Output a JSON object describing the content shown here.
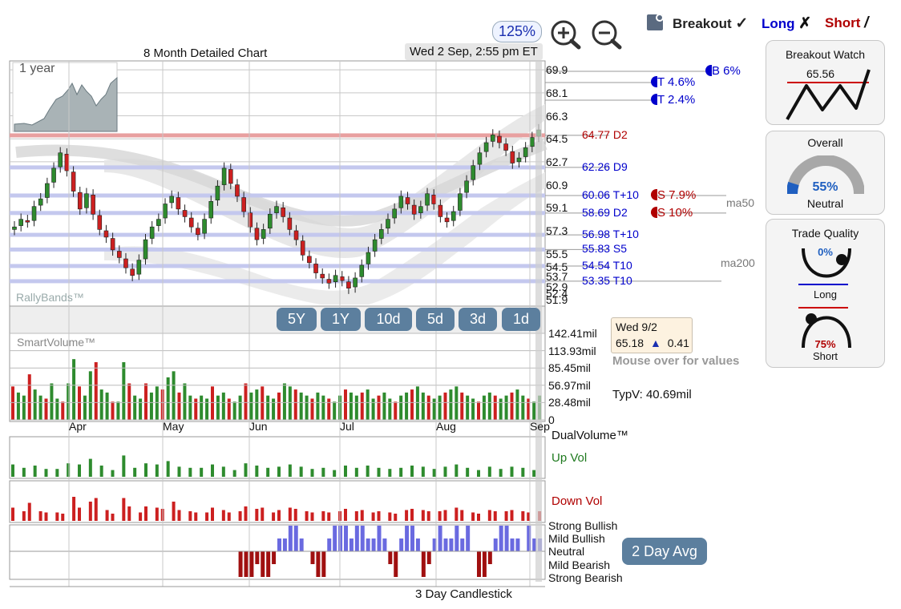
{
  "header": {
    "zoom_level": "125%",
    "zoom_in_icon": "magnifier-plus-icon",
    "zoom_out_icon": "magnifier-minus-icon",
    "legend": {
      "breakout_label": "Breakout",
      "breakout_mark": "✓",
      "long_label": "Long",
      "long_mark": "✗",
      "short_label": "Short",
      "short_mark": "/",
      "long_color": "#0000cc",
      "short_color": "#b00000"
    }
  },
  "price_chart": {
    "title": "8 Month Detailed Chart",
    "timestamp": "Wed 2 Sep, 2:55 pm ET",
    "inset_label": "1 year",
    "watermark": "RallyBands™",
    "y_ticks": [
      "69.9",
      "68.1",
      "66.3",
      "64.5",
      "62.7",
      "60.9",
      "59.1",
      "57.3",
      "55.5",
      "54.5",
      "53.7",
      "52.9",
      "52.4",
      "51.9"
    ],
    "levels": [
      {
        "label": "B",
        "value": "6%",
        "color": "#0000cc",
        "kind": "breakout"
      },
      {
        "label": "T",
        "value": "4.6%",
        "color": "#0000cc",
        "kind": "target"
      },
      {
        "label": "T",
        "value": "2.4%",
        "color": "#0000cc",
        "kind": "target"
      },
      {
        "price": "64.77",
        "tag": "D2",
        "color": "#b00000"
      },
      {
        "price": "62.26",
        "tag": "D9",
        "color": "#0000cc"
      },
      {
        "price": "60.06",
        "tag": "T+10",
        "color": "#0000cc"
      },
      {
        "price": "58.69",
        "tag": "D2",
        "color": "#0000cc"
      },
      {
        "price": "56.98",
        "tag": "T+10",
        "color": "#0000cc"
      },
      {
        "price": "55.83",
        "tag": "S5",
        "color": "#0000cc"
      },
      {
        "price": "54.54",
        "tag": "T10",
        "color": "#0000cc"
      },
      {
        "price": "53.35",
        "tag": "T10",
        "color": "#0000cc"
      }
    ],
    "stops": [
      {
        "label": "S",
        "value": "7.9%",
        "color": "#b00000"
      },
      {
        "label": "S",
        "value": "10%",
        "color": "#b00000"
      }
    ],
    "ma_labels": {
      "ma50": "ma50",
      "ma200": "ma200"
    },
    "timeframes": [
      "5Y",
      "1Y",
      "10d",
      "5d",
      "3d",
      "1d"
    ]
  },
  "volume_panel": {
    "title": "SmartVolume™",
    "y_ticks": [
      "142.41mil",
      "113.93mil",
      "85.45mil",
      "56.97mil",
      "28.48mil",
      "0"
    ],
    "months": [
      "Apr",
      "May",
      "Jun",
      "Jul",
      "Aug",
      "Sep"
    ],
    "info_date": "Wed 9/2",
    "info_price": "65.18",
    "info_arrow": "▲",
    "info_change": "0.41",
    "hint": "Mouse over for values",
    "typv_label": "TypV: 40.69mil"
  },
  "dual_volume": {
    "title": "DualVolume™",
    "up_label": "Up Vol",
    "down_label": "Down Vol",
    "up_color": "#2e8b2e",
    "down_color": "#cc2020"
  },
  "sentiment": {
    "levels": [
      "Strong Bullish",
      "Mild Bullish",
      "Neutral",
      "Mild Bearish",
      "Strong Bearish"
    ],
    "avg_button": "2 Day Avg",
    "footer": "3 Day Candlestick"
  },
  "side_panels": {
    "breakout_watch": {
      "title": "Breakout Watch",
      "value": "65.56"
    },
    "overall": {
      "title": "Overall",
      "percent": "55%",
      "label": "Neutral",
      "fraction": 0.55
    },
    "trade_quality": {
      "title": "Trade Quality",
      "long_pct": "0%",
      "long_label": "Long",
      "short_pct": "75%",
      "short_label": "Short"
    }
  },
  "chart_data": {
    "type": "bar",
    "series": [
      {
        "name": "SmartVolume",
        "note_values_mil": [
          55,
          45,
          40,
          75,
          50,
          40,
          35,
          60,
          35,
          30,
          60,
          100,
          55,
          40,
          80,
          95,
          50,
          45,
          30,
          30,
          95,
          60,
          40,
          35,
          60,
          45,
          55,
          50,
          70,
          80,
          45,
          60,
          40,
          35,
          40,
          35,
          55,
          40,
          45,
          35,
          30,
          40,
          60,
          45,
          50,
          55,
          40,
          35,
          45,
          60,
          55,
          50,
          45,
          40,
          35,
          45,
          40,
          35,
          30,
          40,
          50,
          45,
          40,
          45,
          50,
          35,
          40,
          45,
          35,
          30,
          40,
          45,
          50,
          55,
          45,
          40,
          35,
          40,
          45,
          50,
          55,
          45,
          40,
          35,
          30,
          40,
          45,
          40,
          35,
          40,
          45,
          50,
          40,
          35,
          30,
          40
        ]
      }
    ],
    "ylim": [
      0,
      142.41
    ]
  }
}
